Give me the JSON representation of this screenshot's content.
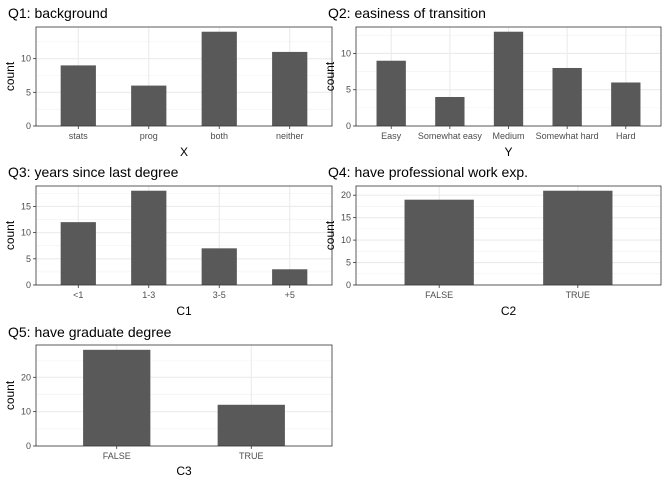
{
  "chart_data": [
    {
      "type": "bar",
      "title": "Q1: background",
      "xlabel": "X",
      "ylabel": "count",
      "categories": [
        "stats",
        "prog",
        "both",
        "neither"
      ],
      "values": [
        9,
        6,
        14,
        11
      ],
      "ylim": [
        0,
        14.7
      ],
      "yticks": [
        0,
        5,
        10
      ],
      "bar_color": "#595959",
      "grid": true
    },
    {
      "type": "bar",
      "title": "Q2: easiness of transition",
      "xlabel": "Y",
      "ylabel": "count",
      "categories": [
        "Easy",
        "Somewhat easy",
        "Medium",
        "Somewhat hard",
        "Hard"
      ],
      "values": [
        9,
        4,
        13,
        8,
        6
      ],
      "ylim": [
        0,
        13.65
      ],
      "yticks": [
        0,
        5,
        10
      ],
      "bar_color": "#595959",
      "grid": true
    },
    {
      "type": "bar",
      "title": "Q3: years since last degree",
      "xlabel": "C1",
      "ylabel": "count",
      "categories": [
        "<1",
        "1-3",
        "3-5",
        "+5"
      ],
      "values": [
        12,
        18,
        7,
        3
      ],
      "ylim": [
        0,
        18.9
      ],
      "yticks": [
        0,
        5,
        10,
        15
      ],
      "bar_color": "#595959",
      "grid": true
    },
    {
      "type": "bar",
      "title": "Q4: have professional work exp.",
      "xlabel": "C2",
      "ylabel": "count",
      "categories": [
        "FALSE",
        "TRUE"
      ],
      "values": [
        19,
        21
      ],
      "ylim": [
        0,
        22.05
      ],
      "yticks": [
        0,
        5,
        10,
        15,
        20
      ],
      "bar_color": "#595959",
      "grid": true
    },
    {
      "type": "bar",
      "title": "Q5: have graduate degree",
      "xlabel": "C3",
      "ylabel": "count",
      "categories": [
        "FALSE",
        "TRUE"
      ],
      "values": [
        28,
        12
      ],
      "ylim": [
        0,
        29.4
      ],
      "yticks": [
        0,
        10,
        20
      ],
      "bar_color": "#595959",
      "grid": true
    }
  ]
}
